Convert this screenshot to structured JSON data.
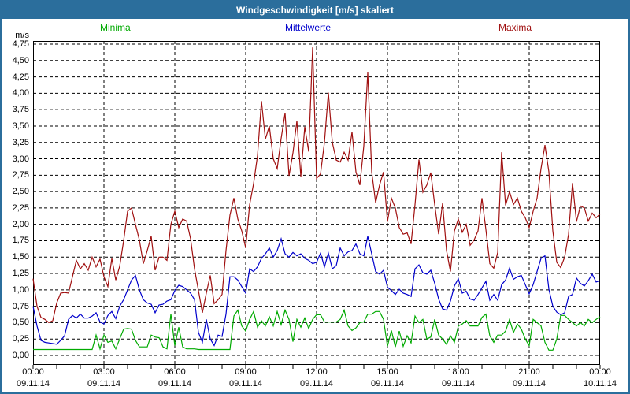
{
  "window": {
    "title": "Windgeschwindigkeit [m/s] skaliert"
  },
  "colors": {
    "titlebar_bg": "#2b6e9c",
    "titlebar_text": "#ffffff",
    "window_border": "#2b6e9c",
    "plot_border": "#000000",
    "grid": "#000000",
    "minima": "#00aa00",
    "mittelwerte": "#0000cc",
    "maxima": "#a01010"
  },
  "legend": [
    {
      "label": "Minima",
      "color": "#00aa00"
    },
    {
      "label": "Mittelwerte",
      "color": "#0000cc"
    },
    {
      "label": "Maxima",
      "color": "#a01010"
    }
  ],
  "chart_data": {
    "type": "line",
    "title": "Windgeschwindigkeit [m/s] skaliert",
    "ylabel": "m/s",
    "xlabel": "",
    "ylim": [
      0,
      4.75
    ],
    "y_tick_step": 0.25,
    "grid": true,
    "legend_position": "top",
    "decimal_separator": ",",
    "y_ticks": [
      "0,00",
      "0,25",
      "0,50",
      "0,75",
      "1,00",
      "1,25",
      "1,50",
      "1,75",
      "2,00",
      "2,25",
      "2,50",
      "2,75",
      "3,00",
      "3,25",
      "3,50",
      "3,75",
      "4,00",
      "4,25",
      "4,50",
      "4,75"
    ],
    "x_ticks": [
      {
        "time": "00:00",
        "date": "09.11.14"
      },
      {
        "time": "03:00",
        "date": "09.11.14"
      },
      {
        "time": "06:00",
        "date": "09.11.14"
      },
      {
        "time": "09:00",
        "date": "09.11.14"
      },
      {
        "time": "12:00",
        "date": "09.11.14"
      },
      {
        "time": "15:00",
        "date": "09.11.14"
      },
      {
        "time": "18:00",
        "date": "09.11.14"
      },
      {
        "time": "21:00",
        "date": "09.11.14"
      },
      {
        "time": "00:00",
        "date": "10.11.14"
      }
    ],
    "x_minutes_per_point": 10,
    "x_hours_total": 24,
    "series": [
      {
        "name": "Minima",
        "color": "#00aa00",
        "values": [
          0.09,
          0.09,
          0.09,
          0.09,
          0.09,
          0.09,
          0.09,
          0.09,
          0.09,
          0.09,
          0.09,
          0.09,
          0.09,
          0.09,
          0.09,
          0.09,
          0.31,
          0.1,
          0.31,
          0.2,
          0.22,
          0.1,
          0.25,
          0.4,
          0.41,
          0.4,
          0.23,
          0.13,
          0.13,
          0.13,
          0.31,
          0.28,
          0.27,
          0.13,
          0.1,
          0.63,
          0.15,
          0.43,
          0.13,
          0.1,
          0.1,
          0.1,
          0.09,
          0.09,
          0.09,
          0.09,
          0.09,
          0.09,
          0.09,
          0.09,
          0.09,
          0.6,
          0.69,
          0.45,
          0.37,
          0.55,
          0.67,
          0.43,
          0.53,
          0.45,
          0.59,
          0.45,
          0.67,
          0.47,
          0.69,
          0.55,
          0.21,
          0.55,
          0.43,
          0.57,
          0.41,
          0.55,
          0.62,
          0.62,
          0.51,
          0.51,
          0.51,
          0.51,
          0.55,
          0.69,
          0.45,
          0.38,
          0.42,
          0.5,
          0.51,
          0.63,
          0.63,
          0.67,
          0.67,
          0.55,
          0.14,
          0.38,
          0.13,
          0.37,
          0.14,
          0.3,
          0.19,
          0.6,
          0.5,
          0.55,
          0.25,
          0.28,
          0.55,
          0.31,
          0.25,
          0.17,
          0.3,
          0.2,
          0.45,
          0.48,
          0.53,
          0.45,
          0.45,
          0.45,
          0.58,
          0.63,
          0.3,
          0.2,
          0.31,
          0.31,
          0.37,
          0.55,
          0.35,
          0.48,
          0.4,
          0.25,
          0.15,
          0.55,
          0.5,
          0.45,
          0.2,
          0.08,
          0.08,
          0.25,
          0.61,
          0.61,
          0.55,
          0.5,
          0.45,
          0.5,
          0.45,
          0.55,
          0.5,
          0.55,
          0.59
        ]
      },
      {
        "name": "Mittelwerte",
        "color": "#0000cc",
        "values": [
          0.75,
          0.45,
          0.23,
          0.2,
          0.19,
          0.18,
          0.17,
          0.23,
          0.3,
          0.55,
          0.61,
          0.57,
          0.63,
          0.57,
          0.57,
          0.6,
          0.65,
          0.51,
          0.48,
          0.61,
          0.67,
          0.56,
          0.75,
          0.85,
          1.0,
          1.15,
          1.22,
          1.0,
          0.85,
          0.8,
          0.78,
          0.65,
          0.77,
          0.78,
          0.83,
          0.85,
          0.99,
          1.07,
          1.05,
          1.0,
          0.95,
          0.85,
          0.35,
          0.2,
          0.55,
          0.25,
          0.15,
          0.31,
          0.29,
          0.63,
          1.2,
          1.2,
          1.15,
          1.05,
          0.95,
          1.32,
          1.28,
          1.35,
          1.48,
          1.55,
          1.64,
          1.5,
          1.6,
          1.78,
          1.55,
          1.5,
          1.57,
          1.52,
          1.55,
          1.48,
          1.45,
          1.4,
          1.42,
          1.56,
          1.35,
          1.56,
          1.32,
          1.37,
          1.64,
          1.52,
          1.58,
          1.6,
          1.7,
          1.55,
          1.52,
          1.82,
          1.55,
          1.28,
          1.24,
          1.3,
          1.04,
          0.99,
          0.93,
          1.01,
          0.95,
          0.93,
          0.9,
          1.32,
          1.38,
          1.26,
          1.24,
          1.3,
          1.1,
          0.86,
          0.71,
          0.69,
          0.83,
          1.06,
          1.17,
          0.95,
          0.98,
          0.86,
          0.84,
          0.93,
          1.03,
          1.13,
          0.84,
          0.93,
          0.84,
          1.08,
          1.15,
          1.33,
          1.16,
          1.2,
          1.22,
          1.08,
          0.94,
          1.08,
          1.28,
          1.48,
          1.52,
          1.01,
          0.75,
          0.66,
          0.62,
          0.65,
          0.9,
          0.93,
          1.18,
          1.1,
          1.06,
          1.14,
          1.24,
          1.12,
          1.14
        ]
      },
      {
        "name": "Maxima",
        "color": "#a01010",
        "values": [
          1.17,
          0.75,
          0.58,
          0.55,
          0.5,
          0.53,
          0.8,
          0.95,
          0.96,
          0.95,
          1.2,
          1.45,
          1.32,
          1.4,
          1.3,
          1.5,
          1.35,
          1.47,
          1.2,
          1.05,
          1.48,
          1.15,
          1.36,
          1.75,
          2.2,
          2.25,
          2.0,
          1.76,
          1.4,
          1.6,
          1.82,
          1.3,
          1.5,
          1.5,
          1.45,
          2.0,
          2.2,
          1.95,
          2.08,
          2.05,
          1.78,
          1.32,
          0.99,
          0.65,
          0.95,
          1.22,
          0.79,
          0.85,
          0.93,
          1.6,
          2.14,
          2.4,
          2.08,
          1.9,
          1.64,
          2.3,
          2.62,
          3.05,
          3.88,
          3.3,
          3.5,
          3.0,
          2.85,
          3.31,
          3.7,
          2.74,
          3.09,
          3.58,
          2.73,
          3.49,
          3.11,
          4.7,
          2.7,
          2.77,
          3.25,
          4.01,
          3.25,
          2.98,
          2.95,
          3.1,
          2.98,
          3.41,
          2.8,
          2.6,
          3.2,
          4.32,
          2.8,
          2.33,
          2.6,
          2.8,
          2.04,
          2.4,
          2.25,
          1.95,
          1.85,
          1.87,
          1.7,
          2.3,
          2.99,
          2.49,
          2.6,
          2.79,
          2.3,
          1.85,
          2.32,
          1.6,
          1.28,
          1.9,
          2.08,
          1.88,
          2.0,
          1.68,
          1.76,
          1.9,
          2.4,
          1.92,
          1.4,
          1.33,
          1.57,
          3.1,
          2.29,
          2.5,
          2.3,
          2.4,
          2.2,
          2.1,
          1.95,
          2.2,
          2.4,
          2.85,
          3.21,
          2.8,
          1.9,
          1.42,
          1.34,
          1.5,
          1.85,
          2.63,
          2.04,
          2.28,
          2.25,
          2.05,
          2.17,
          2.1,
          2.16
        ]
      }
    ]
  }
}
